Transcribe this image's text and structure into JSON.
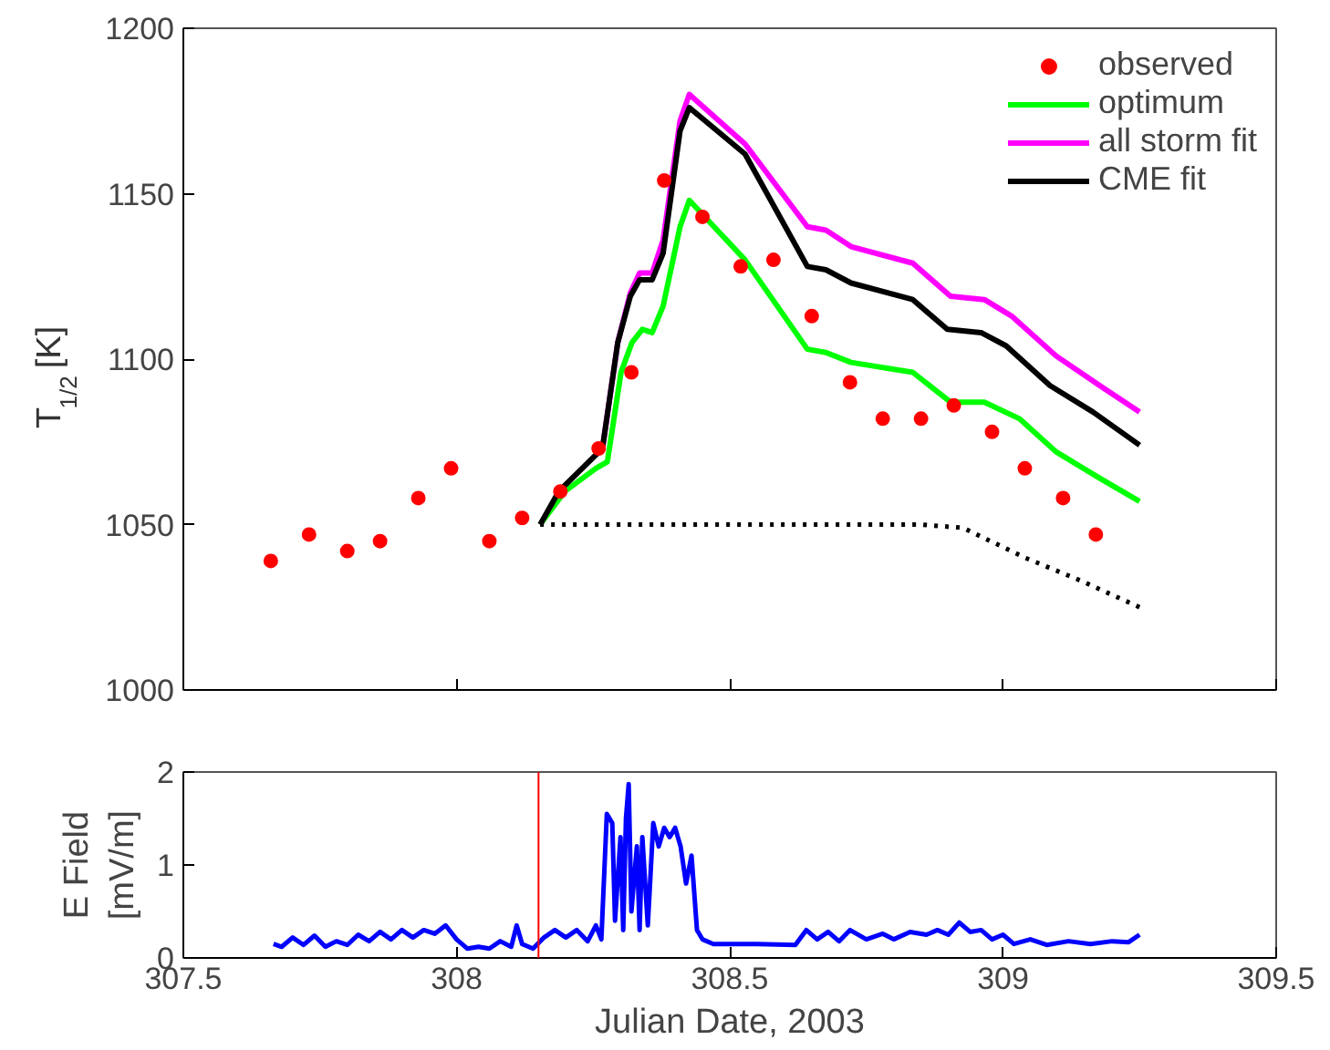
{
  "chart_data": [
    {
      "type": "line",
      "ylabel": "T$_{1/2}$ [K]",
      "xlim": [
        307.5,
        309.5
      ],
      "xticks": [
        {
          "value": 307.5,
          "label": null
        },
        {
          "value": 308,
          "label": null
        },
        {
          "value": 308.5,
          "label": null
        },
        {
          "value": 309,
          "label": null
        },
        {
          "value": 309.5,
          "label": null
        }
      ],
      "ylim": [
        1000,
        1200
      ],
      "yticks": [
        1000,
        1050,
        1100,
        1150,
        1200
      ],
      "tick_labels": "y",
      "grid": false,
      "legend": "top right",
      "series": [
        {
          "name": "observed",
          "type": "scatter",
          "marker": "circle",
          "color": "#ff0000",
          "x": [
            307.66,
            307.73,
            307.8,
            307.86,
            307.93,
            307.99,
            308.06,
            308.12,
            308.19,
            308.26,
            308.32,
            308.38,
            308.45,
            308.52,
            308.58,
            308.65,
            308.72,
            308.78,
            308.85,
            308.91,
            308.98,
            309.04,
            309.11,
            309.17
          ],
          "values": [
            1039,
            1047,
            1042,
            1045,
            1058,
            1067,
            1045,
            1052,
            1060,
            1073,
            1096,
            1154,
            1143,
            1128,
            1130,
            1113,
            1093,
            1082,
            1082,
            1086,
            1078,
            1067,
            1058,
            1047
          ]
        },
        {
          "name": "optimum",
          "color": "#00ff00",
          "x": [
            308.153,
            308.198,
            308.255,
            308.276,
            308.301,
            308.321,
            308.34,
            308.358,
            308.378,
            308.409,
            308.426,
            308.528,
            308.642,
            308.676,
            308.722,
            308.835,
            308.904,
            308.966,
            309.03,
            309.097,
            309.177,
            309.25
          ],
          "values": [
            1050,
            1060,
            1067,
            1069,
            1096,
            1105,
            1109,
            1108,
            1116,
            1140,
            1148,
            1130,
            1103,
            1102,
            1099,
            1096,
            1087,
            1087,
            1082,
            1072,
            1064,
            1057
          ]
        },
        {
          "name": "all storm fit",
          "color": "#ff00ff",
          "x": [
            308.267,
            308.295,
            308.318,
            308.335,
            308.358,
            308.378,
            308.409,
            308.426,
            308.528,
            308.642,
            308.676,
            308.722,
            308.835,
            308.904,
            308.966,
            309.016,
            309.097,
            309.177,
            309.25
          ],
          "values": [
            1073,
            1105,
            1120,
            1126,
            1126,
            1136,
            1172,
            1180,
            1165,
            1140,
            1139,
            1134,
            1129,
            1119,
            1118,
            1113,
            1101,
            1092,
            1084
          ]
        },
        {
          "name": "CME fit",
          "color": "#000000",
          "x": [
            308.153,
            308.187,
            308.267,
            308.295,
            308.318,
            308.335,
            308.358,
            308.378,
            308.409,
            308.426,
            308.528,
            308.642,
            308.676,
            308.722,
            308.835,
            308.898,
            308.96,
            309.006,
            309.086,
            309.165,
            309.25
          ],
          "values": [
            1050,
            1060,
            1073,
            1105,
            1119,
            1124,
            1124,
            1132,
            1169,
            1176,
            1162,
            1128,
            1127,
            1123,
            1118,
            1109,
            1108,
            1104,
            1092,
            1084,
            1074
          ]
        },
        {
          "color": "#000000",
          "line_style": "dotted",
          "x": [
            308.153,
            308.5,
            308.85,
            308.927,
            309.04,
            309.143,
            309.25
          ],
          "values": [
            1050,
            1050,
            1050,
            1049,
            1040,
            1033,
            1025
          ]
        }
      ]
    },
    {
      "type": "line",
      "xlabel": "Julian Date, 2003",
      "ylabel": "E Field\n[mV/m]",
      "xlim": [
        307.5,
        309.5
      ],
      "xticks": [
        307.5,
        308,
        308.5,
        309,
        309.5
      ],
      "ylim": [
        0,
        2
      ],
      "yticks": [
        0,
        1,
        2
      ],
      "grid": false,
      "ref_lines": [
        {
          "axis": "x",
          "value": 308.15,
          "color": "#ff0000"
        }
      ],
      "series": [
        {
          "color": "#0000ff",
          "x": [
            307.665,
            307.68,
            307.7,
            307.72,
            307.74,
            307.76,
            307.78,
            307.8,
            307.82,
            307.84,
            307.86,
            307.88,
            307.9,
            307.92,
            307.94,
            307.96,
            307.98,
            308.0,
            308.02,
            308.04,
            308.06,
            308.08,
            308.1,
            308.11,
            308.12,
            308.14,
            308.16,
            308.18,
            308.2,
            308.22,
            308.24,
            308.255,
            308.265,
            308.275,
            308.285,
            308.29,
            308.3,
            308.305,
            308.31,
            308.315,
            308.32,
            308.33,
            308.335,
            308.34,
            308.35,
            308.36,
            308.37,
            308.38,
            308.39,
            308.4,
            308.41,
            308.42,
            308.43,
            308.44,
            308.45,
            308.47,
            308.55,
            308.62,
            308.64,
            308.66,
            308.68,
            308.7,
            308.72,
            308.75,
            308.78,
            308.8,
            308.83,
            308.86,
            308.88,
            308.9,
            308.92,
            308.94,
            308.96,
            308.98,
            309.0,
            309.02,
            309.05,
            309.08,
            309.12,
            309.16,
            309.2,
            309.23,
            309.25
          ],
          "values": [
            0.15,
            0.12,
            0.22,
            0.14,
            0.24,
            0.12,
            0.18,
            0.14,
            0.25,
            0.18,
            0.28,
            0.2,
            0.3,
            0.22,
            0.3,
            0.26,
            0.35,
            0.2,
            0.1,
            0.12,
            0.1,
            0.18,
            0.12,
            0.35,
            0.15,
            0.1,
            0.22,
            0.3,
            0.22,
            0.3,
            0.18,
            0.35,
            0.2,
            1.55,
            1.45,
            0.4,
            1.3,
            0.3,
            1.5,
            1.87,
            0.5,
            1.2,
            0.3,
            1.3,
            0.35,
            1.45,
            1.2,
            1.4,
            1.3,
            1.4,
            1.2,
            0.8,
            1.1,
            0.3,
            0.2,
            0.15,
            0.15,
            0.14,
            0.3,
            0.2,
            0.28,
            0.18,
            0.3,
            0.2,
            0.26,
            0.2,
            0.28,
            0.25,
            0.3,
            0.25,
            0.38,
            0.28,
            0.3,
            0.2,
            0.25,
            0.15,
            0.2,
            0.14,
            0.18,
            0.15,
            0.18,
            0.17,
            0.25
          ]
        }
      ]
    }
  ]
}
